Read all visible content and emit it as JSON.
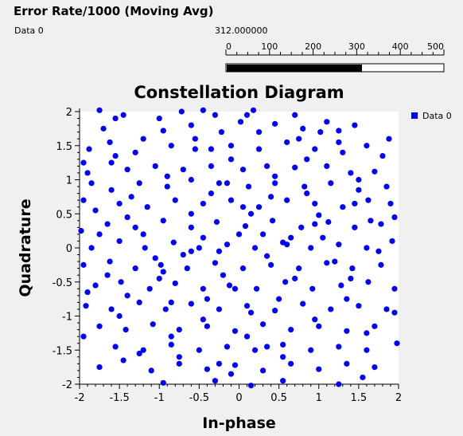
{
  "gauge": {
    "title": "Error Rate/1000 (Moving Avg)",
    "series_label": "Data 0",
    "value_text": "312.000000",
    "value": 312,
    "min": 0,
    "max": 500,
    "ticks": [
      "0",
      "100",
      "200",
      "300",
      "400",
      "500"
    ]
  },
  "chart_data": {
    "type": "scatter",
    "title": "Constellation Diagram",
    "xlabel": "In-phase",
    "ylabel": "Quadrature",
    "xlim": [
      -2,
      2
    ],
    "ylim": [
      -2,
      2
    ],
    "x_ticks": [
      "-2",
      "-1.5",
      "-1",
      "-0.5",
      "0",
      "0.5",
      "1",
      "1.5",
      "2"
    ],
    "y_ticks": [
      "2",
      "1.5",
      "1",
      "0.5",
      "0",
      "-0.5",
      "-1",
      "-1.5",
      "-2"
    ],
    "legend_position": "top-right",
    "grid": false,
    "series": [
      {
        "name": "Data 0",
        "color": "#0000ff",
        "points": [
          [
            -1.75,
            2.02
          ],
          [
            -1.45,
            1.95
          ],
          [
            -0.72,
            2.0
          ],
          [
            -0.45,
            2.02
          ],
          [
            0.18,
            2.02
          ],
          [
            -0.3,
            1.95
          ],
          [
            -1.95,
            1.25
          ],
          [
            -1.62,
            1.55
          ],
          [
            -1.2,
            1.6
          ],
          [
            -0.95,
            1.72
          ],
          [
            -0.6,
            1.8
          ],
          [
            -0.22,
            1.7
          ],
          [
            0.02,
            1.85
          ],
          [
            0.45,
            1.82
          ],
          [
            0.8,
            1.75
          ],
          [
            1.02,
            1.7
          ],
          [
            1.25,
            1.72
          ],
          [
            1.45,
            1.8
          ],
          [
            -1.9,
            1.1
          ],
          [
            -1.55,
            1.35
          ],
          [
            -1.3,
            1.4
          ],
          [
            -0.85,
            1.5
          ],
          [
            -0.55,
            1.45
          ],
          [
            -0.1,
            1.5
          ],
          [
            0.25,
            1.45
          ],
          [
            0.6,
            1.55
          ],
          [
            0.95,
            1.45
          ],
          [
            1.3,
            1.4
          ],
          [
            1.6,
            1.5
          ],
          [
            1.8,
            1.35
          ],
          [
            -1.85,
            0.95
          ],
          [
            -1.4,
            1.15
          ],
          [
            -1.05,
            1.2
          ],
          [
            -0.7,
            1.15
          ],
          [
            -0.35,
            1.2
          ],
          [
            0.05,
            1.15
          ],
          [
            0.35,
            1.2
          ],
          [
            0.7,
            1.18
          ],
          [
            1.1,
            1.2
          ],
          [
            1.4,
            1.1
          ],
          [
            1.7,
            1.12
          ],
          [
            -1.95,
            0.7
          ],
          [
            -1.6,
            0.85
          ],
          [
            -1.25,
            0.95
          ],
          [
            -0.9,
            0.9
          ],
          [
            -0.6,
            1.0
          ],
          [
            -0.25,
            0.95
          ],
          [
            0.12,
            0.9
          ],
          [
            0.45,
            0.95
          ],
          [
            0.82,
            0.9
          ],
          [
            1.15,
            0.95
          ],
          [
            1.5,
            0.85
          ],
          [
            1.85,
            0.9
          ],
          [
            -1.8,
            0.55
          ],
          [
            -1.5,
            0.65
          ],
          [
            -1.15,
            0.6
          ],
          [
            -0.8,
            0.7
          ],
          [
            -0.45,
            0.65
          ],
          [
            -0.1,
            0.7
          ],
          [
            0.25,
            0.6
          ],
          [
            0.6,
            0.7
          ],
          [
            0.95,
            0.65
          ],
          [
            1.3,
            0.6
          ],
          [
            1.62,
            0.7
          ],
          [
            1.95,
            0.45
          ],
          [
            -1.98,
            0.25
          ],
          [
            -1.65,
            0.35
          ],
          [
            -1.3,
            0.3
          ],
          [
            -0.95,
            0.4
          ],
          [
            -0.6,
            0.3
          ],
          [
            -0.28,
            0.38
          ],
          [
            0.08,
            0.32
          ],
          [
            0.42,
            0.4
          ],
          [
            0.78,
            0.3
          ],
          [
            1.12,
            0.38
          ],
          [
            1.45,
            0.3
          ],
          [
            1.78,
            0.35
          ],
          [
            -1.85,
            0.0
          ],
          [
            -1.5,
            0.1
          ],
          [
            -1.18,
            0.0
          ],
          [
            -0.82,
            0.08
          ],
          [
            -0.5,
            0.0
          ],
          [
            -0.15,
            0.05
          ],
          [
            0.2,
            0.0
          ],
          [
            0.55,
            0.08
          ],
          [
            0.9,
            0.0
          ],
          [
            1.25,
            0.05
          ],
          [
            1.6,
            0.0
          ],
          [
            1.92,
            0.1
          ],
          [
            -1.95,
            -0.25
          ],
          [
            -1.62,
            -0.2
          ],
          [
            -1.3,
            -0.3
          ],
          [
            -0.98,
            -0.25
          ],
          [
            -0.65,
            -0.3
          ],
          [
            -0.3,
            -0.22
          ],
          [
            0.05,
            -0.3
          ],
          [
            0.4,
            -0.25
          ],
          [
            0.75,
            -0.3
          ],
          [
            1.1,
            -0.22
          ],
          [
            1.42,
            -0.3
          ],
          [
            1.78,
            -0.25
          ],
          [
            -1.8,
            -0.55
          ],
          [
            -1.48,
            -0.5
          ],
          [
            -1.12,
            -0.6
          ],
          [
            -0.8,
            -0.52
          ],
          [
            -0.45,
            -0.6
          ],
          [
            -0.12,
            -0.55
          ],
          [
            0.22,
            -0.6
          ],
          [
            0.58,
            -0.5
          ],
          [
            0.92,
            -0.6
          ],
          [
            1.28,
            -0.55
          ],
          [
            1.62,
            -0.5
          ],
          [
            1.95,
            -0.6
          ],
          [
            -1.92,
            -0.85
          ],
          [
            -1.6,
            -0.9
          ],
          [
            -1.25,
            -0.8
          ],
          [
            -0.92,
            -0.9
          ],
          [
            -0.6,
            -0.82
          ],
          [
            -0.25,
            -0.9
          ],
          [
            0.1,
            -0.85
          ],
          [
            0.45,
            -0.92
          ],
          [
            0.8,
            -0.82
          ],
          [
            1.15,
            -0.9
          ],
          [
            1.5,
            -0.85
          ],
          [
            1.85,
            -0.9
          ],
          [
            -1.75,
            -1.15
          ],
          [
            -1.42,
            -1.2
          ],
          [
            -1.08,
            -1.12
          ],
          [
            -0.75,
            -1.2
          ],
          [
            -0.4,
            -1.15
          ],
          [
            -0.05,
            -1.22
          ],
          [
            0.3,
            -1.12
          ],
          [
            0.65,
            -1.2
          ],
          [
            1.0,
            -1.15
          ],
          [
            1.35,
            -1.22
          ],
          [
            1.7,
            -1.15
          ],
          [
            -1.95,
            -1.3
          ],
          [
            -1.55,
            -1.45
          ],
          [
            -1.2,
            -1.5
          ],
          [
            -0.85,
            -1.42
          ],
          [
            -0.5,
            -1.5
          ],
          [
            -0.15,
            -1.45
          ],
          [
            0.2,
            -1.5
          ],
          [
            0.55,
            -1.42
          ],
          [
            0.9,
            -1.5
          ],
          [
            1.25,
            -1.45
          ],
          [
            1.6,
            -1.5
          ],
          [
            1.98,
            -1.4
          ],
          [
            -1.75,
            -1.75
          ],
          [
            -1.45,
            -1.65
          ],
          [
            -1.1,
            -1.8
          ],
          [
            -0.75,
            -1.7
          ],
          [
            -0.4,
            -1.78
          ],
          [
            -0.05,
            -1.72
          ],
          [
            0.3,
            -1.8
          ],
          [
            0.65,
            -1.7
          ],
          [
            1.0,
            -1.78
          ],
          [
            1.35,
            -1.7
          ],
          [
            1.7,
            -1.75
          ],
          [
            -0.95,
            -1.98
          ],
          [
            -0.3,
            -1.95
          ],
          [
            0.15,
            -2.02
          ],
          [
            0.55,
            -1.95
          ],
          [
            1.25,
            -2.0
          ],
          [
            -1.7,
            1.75
          ],
          [
            -1.0,
            1.9
          ],
          [
            0.7,
            1.95
          ],
          [
            1.1,
            1.85
          ],
          [
            -1.88,
            1.45
          ],
          [
            1.88,
            1.6
          ],
          [
            -0.45,
            0.15
          ],
          [
            0.35,
            -0.12
          ],
          [
            -0.2,
            -0.4
          ],
          [
            0.15,
            0.5
          ],
          [
            -0.7,
            -0.1
          ],
          [
            0.65,
            0.15
          ],
          [
            -1.0,
            -0.45
          ],
          [
            1.0,
            0.48
          ],
          [
            -0.35,
            0.8
          ],
          [
            0.5,
            -0.75
          ],
          [
            -1.35,
            0.75
          ],
          [
            1.35,
            -0.75
          ],
          [
            -0.85,
            -1.3
          ],
          [
            0.85,
            1.3
          ],
          [
            -1.5,
            -1.0
          ],
          [
            1.5,
            1.0
          ],
          [
            -0.1,
            1.3
          ],
          [
            0.1,
            -1.3
          ],
          [
            -1.2,
            0.2
          ],
          [
            1.2,
            -0.2
          ],
          [
            -0.55,
            1.6
          ],
          [
            0.55,
            -1.6
          ],
          [
            -1.65,
            -0.4
          ],
          [
            1.65,
            0.4
          ],
          [
            0.0,
            0.2
          ],
          [
            -0.25,
            -0.05
          ],
          [
            0.3,
            0.2
          ],
          [
            -0.6,
            0.5
          ],
          [
            0.7,
            -0.45
          ],
          [
            -0.9,
            1.05
          ],
          [
            0.95,
            -1.05
          ],
          [
            -1.4,
            -0.7
          ],
          [
            1.45,
            0.65
          ],
          [
            0.25,
            1.7
          ],
          [
            -0.25,
            -1.7
          ],
          [
            1.75,
            -0.05
          ],
          [
            -1.75,
            0.2
          ],
          [
            0.45,
            1.05
          ],
          [
            -0.45,
            -1.05
          ],
          [
            1.05,
            0.15
          ],
          [
            -1.05,
            -0.15
          ],
          [
            0.05,
            0.6
          ],
          [
            -0.05,
            -0.6
          ],
          [
            0.85,
            0.8
          ],
          [
            -0.85,
            -0.8
          ],
          [
            1.6,
            -1.25
          ],
          [
            -1.6,
            1.25
          ],
          [
            0.35,
            -1.45
          ],
          [
            -0.35,
            1.45
          ],
          [
            1.25,
            1.55
          ],
          [
            -1.25,
            -1.55
          ],
          [
            0.6,
            0.05
          ],
          [
            -0.6,
            -0.05
          ],
          [
            1.9,
            0.65
          ],
          [
            -1.9,
            -0.65
          ],
          [
            0.15,
            -0.95
          ],
          [
            -0.15,
            0.95
          ],
          [
            1.4,
            -0.45
          ],
          [
            -1.4,
            0.45
          ],
          [
            0.75,
            1.6
          ],
          [
            -0.75,
            -1.6
          ],
          [
            0.1,
            1.95
          ],
          [
            -0.1,
            -1.85
          ],
          [
            1.95,
            -0.95
          ],
          [
            -1.55,
            1.9
          ],
          [
            1.55,
            -1.9
          ],
          [
            0.95,
            0.35
          ],
          [
            -0.95,
            -0.35
          ],
          [
            0.4,
            0.75
          ],
          [
            -0.4,
            -0.75
          ]
        ]
      }
    ]
  }
}
